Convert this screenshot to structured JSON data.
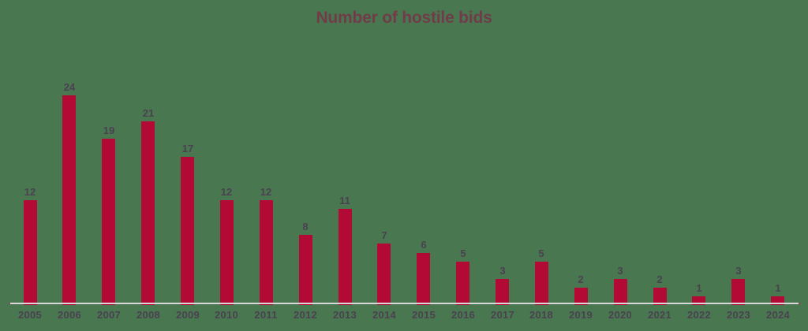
{
  "page": {
    "background_color": "#487750"
  },
  "chart_data": {
    "type": "bar",
    "title": "Number of hostile bids",
    "categories": [
      "2005",
      "2006",
      "2007",
      "2008",
      "2009",
      "2010",
      "2011",
      "2012",
      "2013",
      "2014",
      "2015",
      "2016",
      "2017",
      "2018",
      "2019",
      "2020",
      "2021",
      "2022",
      "2023",
      "2024"
    ],
    "values": [
      12,
      24,
      19,
      21,
      17,
      12,
      12,
      8,
      11,
      7,
      6,
      5,
      3,
      5,
      2,
      3,
      2,
      1,
      3,
      1
    ],
    "xlabel": "",
    "ylabel": "",
    "ylim": [
      0,
      26
    ],
    "gridlines": false,
    "legend_position": "none",
    "value_labels_shown": true,
    "bar_color": "#B20935",
    "axis_line_color": "#D8D8D8",
    "title_color": "#713C49",
    "label_color": "#4B4150"
  }
}
